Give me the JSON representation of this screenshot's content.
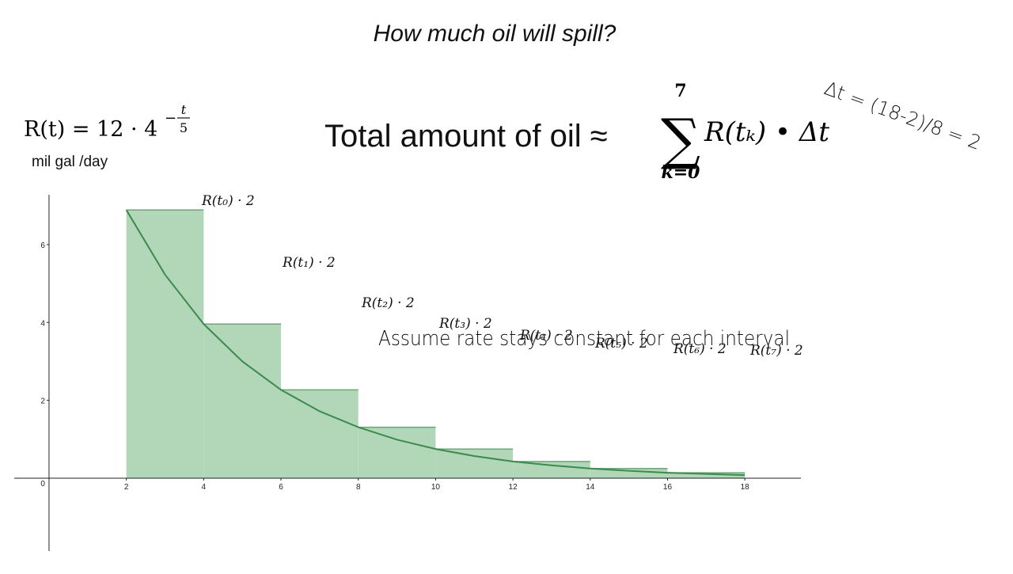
{
  "title": "How much oil will spill?",
  "formula": {
    "base": "R(t) = 12 · 4",
    "exp_sign": "−",
    "exp_num": "t",
    "exp_den": "5",
    "units": "mil gal /day"
  },
  "sum": {
    "lhs": "Total amount of oil ≈",
    "sigma": "∑",
    "upper": "7",
    "lower": "k=0",
    "term": "R(tₖ) • Δt"
  },
  "notes": {
    "delta": "Δt = (18-2)/8 = 2",
    "assume": "Assume rate stays constant for each interval"
  },
  "annotations": [
    "R(t₀) · 2",
    "R(t₁) · 2",
    "R(t₂) · 2",
    "R(t₃) · 2",
    "R(t₄) · 2",
    "R(t₅) · 2",
    "R(t₆) · 2",
    "R(t₇) · 2"
  ],
  "chart_data": {
    "type": "histogram",
    "bins": [
      2,
      4,
      6,
      8,
      10,
      12,
      14,
      16,
      18
    ],
    "values": [
      6.89,
      3.96,
      2.27,
      1.31,
      0.75,
      0.43,
      0.25,
      0.14
    ],
    "color": "#b1d7b8",
    "line": {
      "x": [
        2,
        3,
        4,
        5,
        6,
        7,
        8,
        9,
        10,
        11,
        12,
        13,
        14,
        15,
        16,
        17,
        18
      ],
      "values": [
        6.89,
        5.23,
        3.96,
        3.0,
        2.27,
        1.72,
        1.31,
        0.99,
        0.75,
        0.57,
        0.43,
        0.33,
        0.25,
        0.19,
        0.14,
        0.11,
        0.08
      ],
      "color": "#3d8a4e"
    },
    "xlim": [
      -0.9,
      19.45
    ],
    "ylim": [
      -1.87,
      7.28
    ],
    "xticks": [
      2,
      4,
      6,
      8,
      10,
      12,
      14,
      16,
      18
    ],
    "yticks": [
      0,
      2,
      4,
      6
    ]
  }
}
